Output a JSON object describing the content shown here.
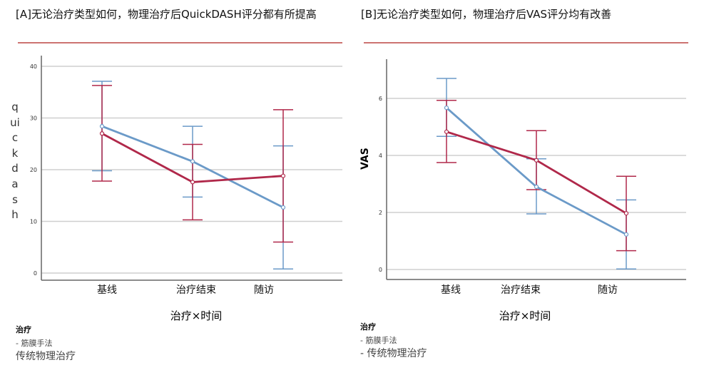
{
  "colors": {
    "series_a": "#6b9ac8",
    "series_b": "#b0284a",
    "grid": "#cfcfcf",
    "rule": "#c0504d"
  },
  "chart_data": [
    {
      "type": "line",
      "title": "[A]无论治疗类型如何，物理治疗后QuickDASH评分都有所提高",
      "xlabel": "治疗×时间",
      "ylabel": "quickdash",
      "ylim": [
        0,
        40
      ],
      "yticks": [
        "0",
        "10",
        "20",
        "30",
        "40"
      ],
      "categories": [
        "基线",
        "治疗结束",
        "随访"
      ],
      "grid": true,
      "legend": {
        "title": "治疗",
        "entries": [
          "- 筋膜手法",
          "传统物理治疗"
        ],
        "placement": "bottom-left"
      },
      "series": [
        {
          "name": "筋膜手法",
          "values": [
            28.4,
            21.6,
            12.7
          ],
          "lower": [
            19.8,
            14.7,
            0.8
          ],
          "upper": [
            37.1,
            28.4,
            24.6
          ]
        },
        {
          "name": "传统物理治疗",
          "values": [
            27.0,
            17.6,
            18.8
          ],
          "lower": [
            17.8,
            10.3,
            6.0
          ],
          "upper": [
            36.3,
            24.9,
            31.6
          ]
        }
      ]
    },
    {
      "type": "line",
      "title": "[B]无论治疗类型如何，物理治疗后VAS评分均有改善",
      "xlabel": "治疗×时间",
      "ylabel": "VAS",
      "ylim": [
        0,
        6
      ],
      "yticks": [
        "0",
        "2",
        "4",
        "6"
      ],
      "categories": [
        "基线",
        "治疗结束",
        "随访"
      ],
      "grid": true,
      "legend": {
        "title": "治疗",
        "entries": [
          "- 筋膜手法",
          "- 传统物理治疗"
        ],
        "placement": "bottom-left"
      },
      "series": [
        {
          "name": "筋膜手法",
          "values": [
            5.67,
            2.9,
            1.23
          ],
          "lower": [
            4.67,
            1.95,
            0.02
          ],
          "upper": [
            6.7,
            3.88,
            2.44
          ]
        },
        {
          "name": "传统物理治疗",
          "values": [
            4.83,
            3.83,
            1.97
          ],
          "lower": [
            3.75,
            2.8,
            0.66
          ],
          "upper": [
            5.93,
            4.87,
            3.27
          ]
        }
      ]
    }
  ]
}
